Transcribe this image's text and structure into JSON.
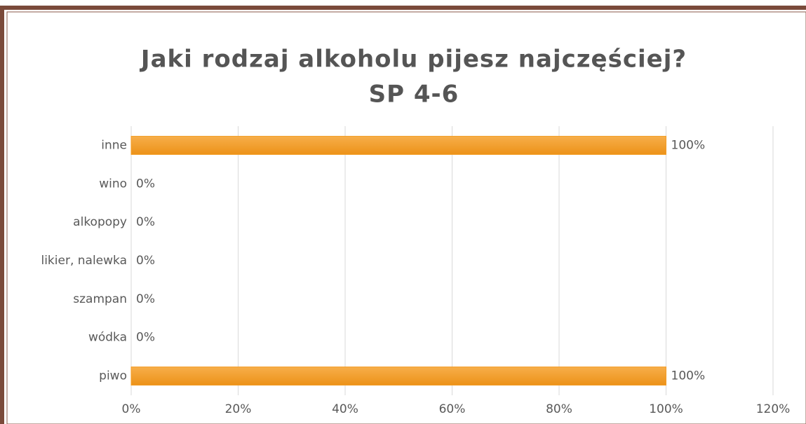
{
  "chart_data": {
    "type": "barh",
    "title": [
      "Jaki rodzaj alkoholu pijesz najczęściej?",
      "SP 4-6"
    ],
    "categories": [
      "inne",
      "wino",
      "alkopopy",
      "likier, nalewka",
      "szampan",
      "wódka",
      "piwo"
    ],
    "values": [
      100,
      0,
      0,
      0,
      0,
      0,
      100
    ],
    "value_labels": [
      "100%",
      "0%",
      "0%",
      "0%",
      "0%",
      "0%",
      "100%"
    ],
    "color": "#f39c25",
    "xlim": [
      0,
      120
    ],
    "xticks": [
      {
        "value": 0,
        "label": "0%"
      },
      {
        "value": 20,
        "label": "20%"
      },
      {
        "value": 40,
        "label": "40%"
      },
      {
        "value": 60,
        "label": "60%"
      },
      {
        "value": 80,
        "label": "80%"
      },
      {
        "value": 100,
        "label": "100%"
      },
      {
        "value": 120,
        "label": "120%"
      }
    ],
    "grid": true
  }
}
